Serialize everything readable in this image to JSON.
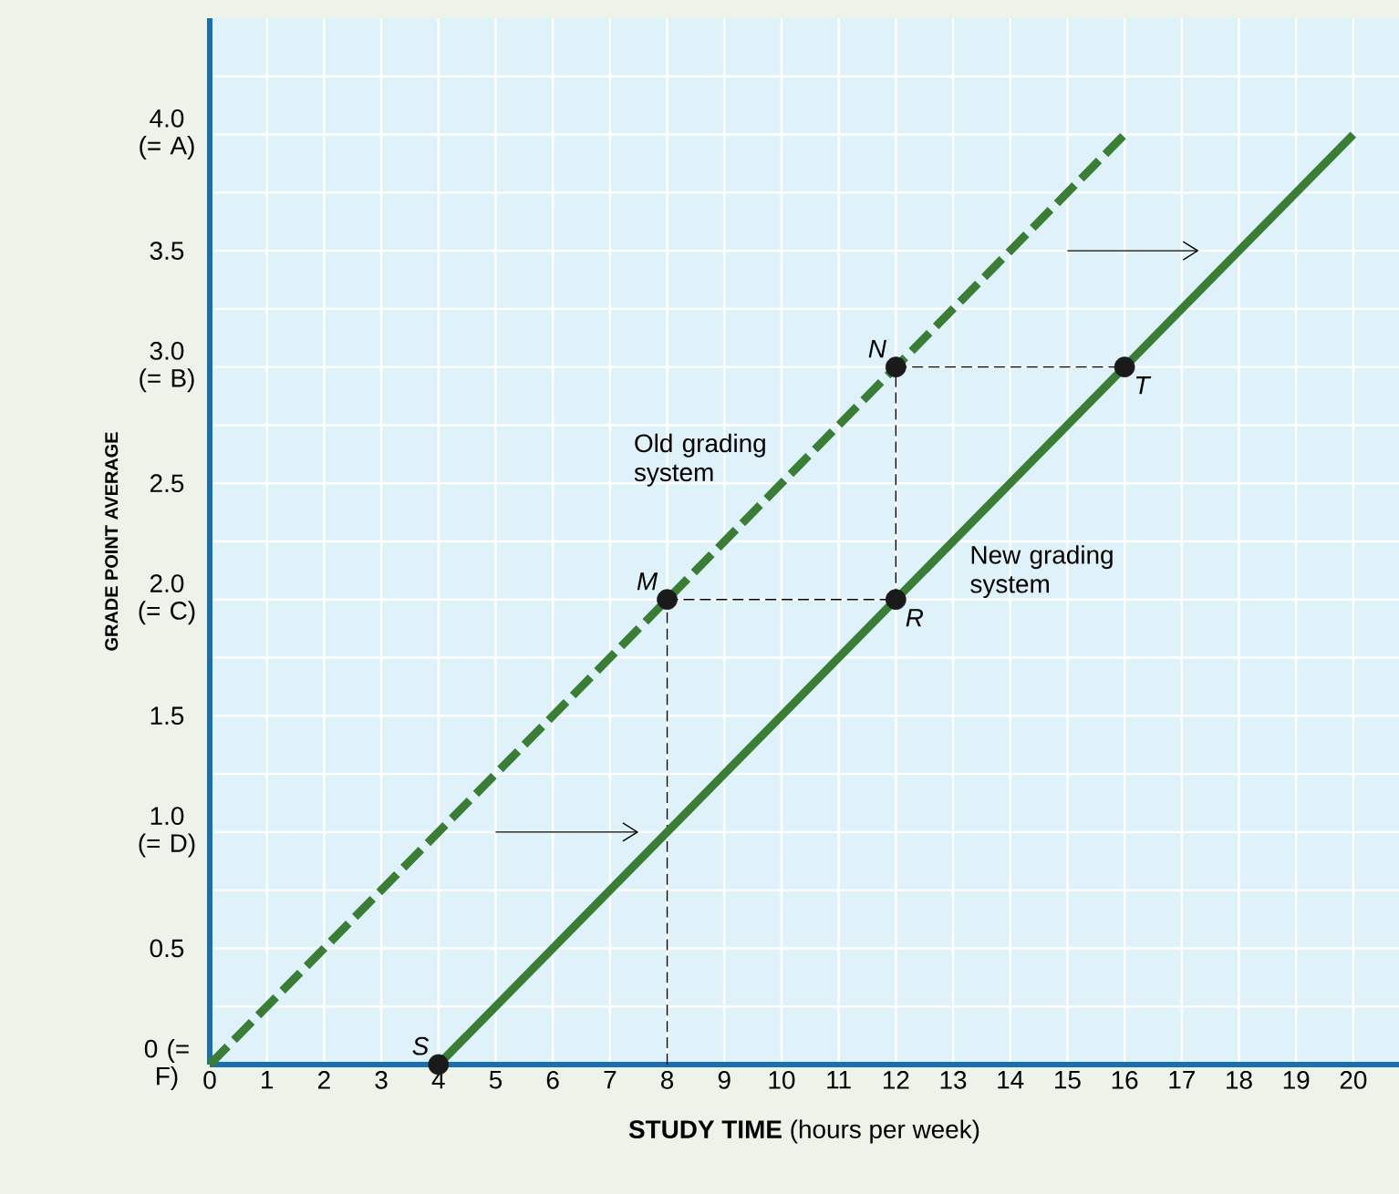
{
  "chart_data": {
    "type": "line",
    "xlabel": "**STUDY TIME** (hours per week)",
    "ylabel": "GRADE POINT AVERAGE",
    "xlim": [
      0,
      20.8
    ],
    "ylim": [
      0,
      4.5
    ],
    "xticks": [
      0,
      1,
      2,
      3,
      4,
      5,
      6,
      7,
      8,
      9,
      10,
      11,
      12,
      13,
      14,
      15,
      16,
      17,
      18,
      19,
      20
    ],
    "yticks": [
      {
        "value": 0,
        "label": "0 (= F)"
      },
      {
        "value": 0.25,
        "label": null
      },
      {
        "value": 0.5,
        "label": "0.5"
      },
      {
        "value": 0.75,
        "label": null
      },
      {
        "value": 1,
        "label": "1.0 (= D)"
      },
      {
        "value": 1.25,
        "label": null
      },
      {
        "value": 1.5,
        "label": "1.5"
      },
      {
        "value": 1.75,
        "label": null
      },
      {
        "value": 2,
        "label": "2.0 (= C)"
      },
      {
        "value": 2.25,
        "label": null
      },
      {
        "value": 2.5,
        "label": "2.5"
      },
      {
        "value": 2.75,
        "label": null
      },
      {
        "value": 3,
        "label": "3.0 (= B)"
      },
      {
        "value": 3.25,
        "label": null
      },
      {
        "value": 3.5,
        "label": "3.5"
      },
      {
        "value": 3.75,
        "label": null
      },
      {
        "value": 4,
        "label": "4.0 (= A)"
      },
      {
        "value": 4.25,
        "label": null
      }
    ],
    "grid": true,
    "series": [
      {
        "color": "#000000",
        "line_style": "dashed",
        "x": [
          8,
          12
        ],
        "values": [
          2,
          2
        ]
      },
      {
        "color": "#000000",
        "line_style": "dashed",
        "x": [
          12,
          16
        ],
        "values": [
          3,
          3
        ]
      },
      {
        "color": "#000000",
        "line_style": "dashed",
        "x": [
          12,
          12
        ],
        "values": [
          2,
          3
        ]
      },
      {
        "color": "#000000",
        "line_style": "dashed",
        "x": [
          8,
          8
        ],
        "values": [
          0,
          2
        ]
      },
      {
        "color": "#000000",
        "line_style": "solid",
        "x": [
          5,
          7.5
        ],
        "values": [
          1,
          1
        ]
      },
      {
        "color": "#000000",
        "line_style": "solid",
        "x": [
          15,
          17.3
        ],
        "values": [
          3.5,
          3.5
        ]
      },
      {
        "color": "#3a7d34",
        "line_style": "dashed",
        "x": [
          0,
          16
        ],
        "values": [
          0,
          4
        ]
      },
      {
        "color": "#3a7d34",
        "line_style": "solid",
        "x": [
          4,
          20
        ],
        "values": [
          0,
          4
        ]
      },
      {
        "type": "scatter",
        "color": "#1a1a1a",
        "marker": "circle",
        "x": [
          4,
          8,
          12,
          12,
          16
        ],
        "values": [
          0,
          2,
          2,
          3,
          3
        ]
      }
    ],
    "annotations": [
      "Old grading system",
      "New grading system",
      {
        "text": "M",
        "x": 8,
        "y": 2
      },
      {
        "text": "N",
        "x": 12,
        "y": 3
      },
      {
        "text": "R",
        "x": 12,
        "y": 2
      },
      {
        "text": "S",
        "x": 4,
        "y": 0
      },
      {
        "text": "T",
        "x": 16,
        "y": 3
      }
    ]
  }
}
